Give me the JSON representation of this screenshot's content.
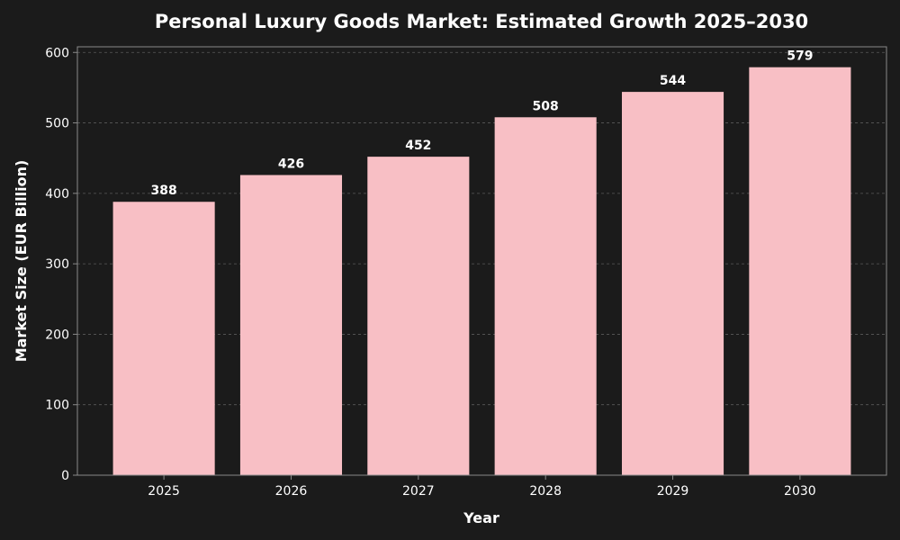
{
  "chart_data": {
    "type": "bar",
    "title": "Personal Luxury Goods Market: Estimated Growth 2025–2030",
    "xlabel": "Year",
    "ylabel": "Market Size (EUR Billion)",
    "categories": [
      "2025",
      "2026",
      "2027",
      "2028",
      "2029",
      "2030"
    ],
    "values": [
      388,
      426,
      452,
      508,
      544,
      579
    ],
    "ylim": [
      0,
      608
    ],
    "yticks": [
      0,
      100,
      200,
      300,
      400,
      500,
      600
    ],
    "grid": true,
    "bar_color": "#f8bfc5",
    "background_color": "#1b1b1b"
  }
}
